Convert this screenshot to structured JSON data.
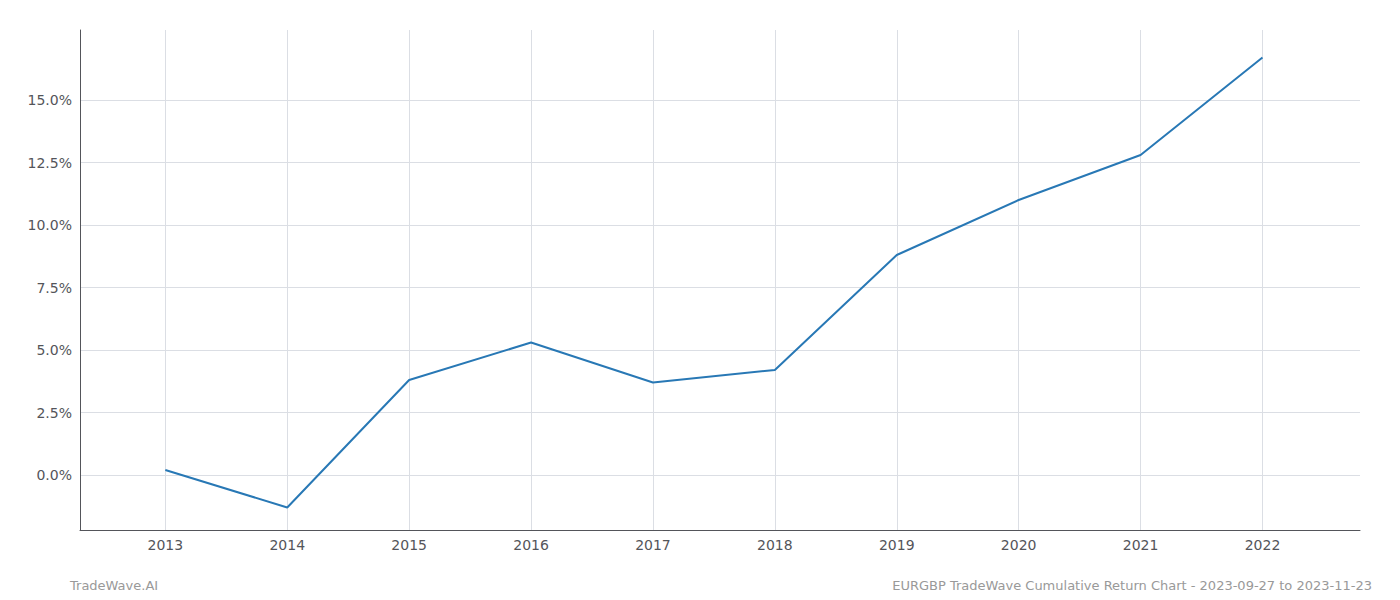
{
  "chart_data": {
    "type": "line",
    "x": [
      2013,
      2014,
      2015,
      2016,
      2017,
      2018,
      2019,
      2020,
      2021,
      2022
    ],
    "values": [
      0.002,
      -0.013,
      0.038,
      0.053,
      0.037,
      0.042,
      0.088,
      0.11,
      0.128,
      0.167
    ],
    "color": "#2878b5",
    "xlim": [
      2012.3,
      2022.8
    ],
    "xticks": [
      2013,
      2014,
      2015,
      2016,
      2017,
      2018,
      2019,
      2020,
      2021,
      2022
    ],
    "ylim": [
      -0.022,
      0.178
    ],
    "yticks": [
      {
        "value": 0.0,
        "label": "0.0%"
      },
      {
        "value": 0.025,
        "label": "2.5%"
      },
      {
        "value": 0.05,
        "label": "5.0%"
      },
      {
        "value": 0.075,
        "label": "7.5%"
      },
      {
        "value": 0.1,
        "label": "10.0%"
      },
      {
        "value": 0.125,
        "label": "12.5%"
      },
      {
        "value": 0.15,
        "label": "15.0%"
      }
    ],
    "grid": true,
    "annotations": [
      "TradeWave.AI",
      "EURGBP TradeWave Cumulative Return Chart - 2023-09-27 to 2023-11-23"
    ]
  }
}
